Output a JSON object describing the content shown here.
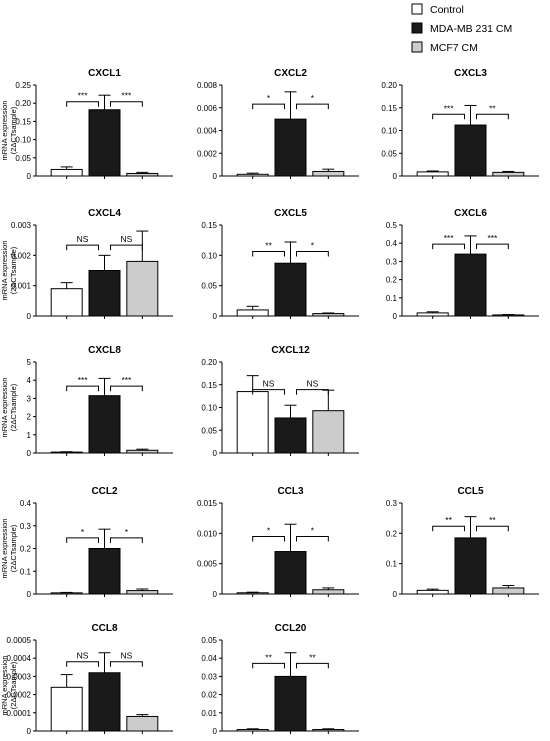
{
  "legend": [
    {
      "label": "Control",
      "color": "#ffffff"
    },
    {
      "label": "MDA-MB 231 CM",
      "color": "#1a1a1a"
    },
    {
      "label": "MCF7  CM",
      "color": "#cccccc"
    }
  ],
  "ylabel_line1": "mRNA expression",
  "ylabel_line2": "(2ΔCTsample)",
  "chart_data": [
    {
      "type": "bar",
      "title": "CXCL1",
      "ylim": [
        0,
        0.25
      ],
      "yticks": [
        "0",
        "0.05",
        "0.10",
        "0.15",
        "0.20",
        "0.25"
      ],
      "ytick_values": [
        0,
        0.05,
        0.1,
        0.15,
        0.2,
        0.25
      ],
      "values": [
        0.018,
        0.182,
        0.007
      ],
      "errors": [
        0.007,
        0.04,
        0.003
      ],
      "significance": [
        "***",
        "***"
      ],
      "show_ylabel": true
    },
    {
      "type": "bar",
      "title": "CXCL2",
      "ylim": [
        0,
        0.008
      ],
      "yticks": [
        "0",
        "0.002",
        "0.004",
        "0.006",
        "0.008"
      ],
      "ytick_values": [
        0,
        0.002,
        0.004,
        0.006,
        0.008
      ],
      "values": [
        0.00015,
        0.005,
        0.0004
      ],
      "errors": [
        0.0001,
        0.0024,
        0.0002
      ],
      "significance": [
        "*",
        "*"
      ],
      "show_ylabel": false
    },
    {
      "type": "bar",
      "title": "CXCL3",
      "ylim": [
        0,
        0.2
      ],
      "yticks": [
        "0",
        "0.05",
        "0.10",
        "0.15",
        "0.20"
      ],
      "ytick_values": [
        0,
        0.05,
        0.1,
        0.15,
        0.2
      ],
      "values": [
        0.009,
        0.112,
        0.008
      ],
      "errors": [
        0.002,
        0.043,
        0.002
      ],
      "significance": [
        "***",
        "**"
      ],
      "show_ylabel": false
    },
    {
      "type": "bar",
      "title": "CXCL4",
      "ylim": [
        0,
        0.003
      ],
      "yticks": [
        "0",
        "0.001",
        "0.002",
        "0.003"
      ],
      "ytick_values": [
        0,
        0.001,
        0.002,
        0.003
      ],
      "values": [
        0.0009,
        0.0015,
        0.0018
      ],
      "errors": [
        0.0002,
        0.0005,
        0.001
      ],
      "significance": [
        "NS",
        "NS"
      ],
      "show_ylabel": true
    },
    {
      "type": "bar",
      "title": "CXCL5",
      "ylim": [
        0,
        0.15
      ],
      "yticks": [
        "0",
        "0.05",
        "0.10",
        "0.15"
      ],
      "ytick_values": [
        0,
        0.05,
        0.1,
        0.15
      ],
      "values": [
        0.01,
        0.087,
        0.004
      ],
      "errors": [
        0.006,
        0.035,
        0.001
      ],
      "significance": [
        "**",
        "*"
      ],
      "show_ylabel": false
    },
    {
      "type": "bar",
      "title": "CXCL6",
      "ylim": [
        0,
        0.5
      ],
      "yticks": [
        "0",
        "0.1",
        "0.2",
        "0.3",
        "0.4",
        "0.5"
      ],
      "ytick_values": [
        0,
        0.1,
        0.2,
        0.3,
        0.4,
        0.5
      ],
      "values": [
        0.017,
        0.34,
        0.006
      ],
      "errors": [
        0.006,
        0.1,
        0.002
      ],
      "significance": [
        "***",
        "***"
      ],
      "show_ylabel": false
    },
    {
      "type": "bar",
      "title": "CXCL8",
      "ylim": [
        0,
        5
      ],
      "yticks": [
        "0",
        "1",
        "2",
        "3",
        "4",
        "5"
      ],
      "ytick_values": [
        0,
        1,
        2,
        3,
        4,
        5
      ],
      "values": [
        0.05,
        3.15,
        0.15
      ],
      "errors": [
        0.02,
        0.95,
        0.06
      ],
      "significance": [
        "***",
        "***"
      ],
      "show_ylabel": true
    },
    {
      "type": "bar",
      "title": "CXCL12",
      "ylim": [
        0,
        0.2
      ],
      "yticks": [
        "0",
        "0.05",
        "0.10",
        "0.15",
        "0.20"
      ],
      "ytick_values": [
        0,
        0.05,
        0.1,
        0.15,
        0.2
      ],
      "values": [
        0.135,
        0.077,
        0.093
      ],
      "errors": [
        0.035,
        0.028,
        0.045
      ],
      "significance": [
        "NS",
        "NS"
      ],
      "show_ylabel": false
    },
    {
      "type": "bar",
      "title": "CCL2",
      "ylim": [
        0,
        0.4
      ],
      "yticks": [
        "0",
        "0.1",
        "0.2",
        "0.3",
        "0.4"
      ],
      "ytick_values": [
        0,
        0.1,
        0.2,
        0.3,
        0.4
      ],
      "values": [
        0.005,
        0.2,
        0.015
      ],
      "errors": [
        0.002,
        0.085,
        0.007
      ],
      "significance": [
        "*",
        "*"
      ],
      "show_ylabel": true
    },
    {
      "type": "bar",
      "title": "CCL3",
      "ylim": [
        0,
        0.015
      ],
      "yticks": [
        "0",
        "0.005",
        "0.010",
        "0.015"
      ],
      "ytick_values": [
        0,
        0.005,
        0.01,
        0.015
      ],
      "values": [
        0.0002,
        0.007,
        0.0007
      ],
      "errors": [
        0.0001,
        0.0045,
        0.0003
      ],
      "significance": [
        "*",
        "*"
      ],
      "show_ylabel": false
    },
    {
      "type": "bar",
      "title": "CCL5",
      "ylim": [
        0,
        0.3
      ],
      "yticks": [
        "0",
        "0.1",
        "0.2",
        "0.3"
      ],
      "ytick_values": [
        0,
        0.1,
        0.2,
        0.3
      ],
      "values": [
        0.012,
        0.185,
        0.02
      ],
      "errors": [
        0.004,
        0.07,
        0.008
      ],
      "significance": [
        "**",
        "**"
      ],
      "show_ylabel": false
    },
    {
      "type": "bar",
      "title": "CCL8",
      "ylim": [
        0,
        0.0005
      ],
      "yticks": [
        "0",
        "0.0001",
        "0.0002",
        "0.0003",
        "0.0004",
        "0.0005"
      ],
      "ytick_values": [
        0,
        0.0001,
        0.0002,
        0.0003,
        0.0004,
        0.0005
      ],
      "values": [
        0.00024,
        0.00032,
        8e-05
      ],
      "errors": [
        7e-05,
        0.00011,
        1e-05
      ],
      "significance": [
        "NS",
        "NS"
      ],
      "show_ylabel": true
    },
    {
      "type": "bar",
      "title": "CCL20",
      "ylim": [
        0,
        0.05
      ],
      "yticks": [
        "0",
        "0.01",
        "0.02",
        "0.03",
        "0.04",
        "0.05"
      ],
      "ytick_values": [
        0,
        0.01,
        0.02,
        0.03,
        0.04,
        0.05
      ],
      "values": [
        0.0008,
        0.03,
        0.0008
      ],
      "errors": [
        0.0004,
        0.013,
        0.0004
      ],
      "significance": [
        "**",
        "**"
      ],
      "show_ylabel": false
    }
  ]
}
